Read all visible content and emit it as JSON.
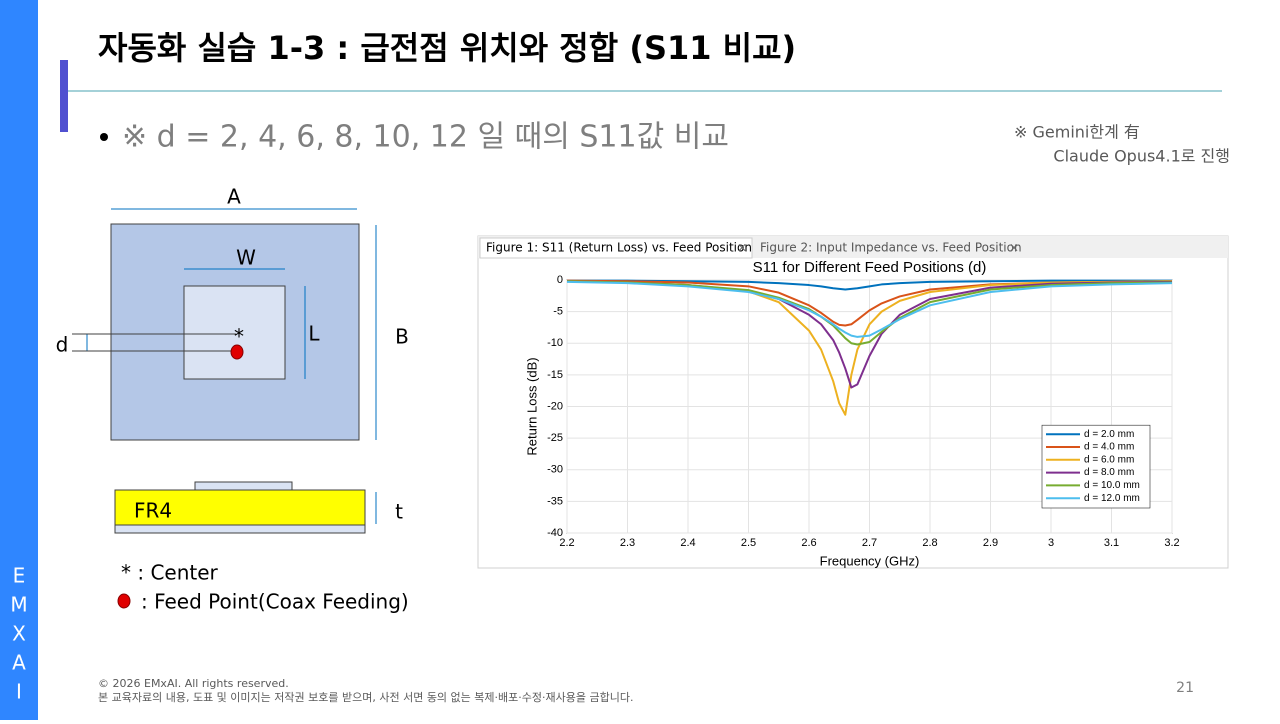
{
  "header": {
    "title": "자동화 실습 1-3 : 급전점 위치와 정합 (S11 비교)"
  },
  "bullet": "※ d = 2, 4, 6, 8, 10, 12 일 때의 S11값 비교",
  "note": [
    "※ Gemini한계 有",
    "Claude Opus4.1로 진행"
  ],
  "diagram": {
    "labels": [
      "A",
      "W",
      "L",
      "B",
      "d",
      "t",
      "FR4",
      "*"
    ],
    "legend": [
      "*  : Center",
      ": Feed Point(Coax Feeding)"
    ]
  },
  "sidebar": [
    "E",
    "M",
    "X",
    "A",
    "I"
  ],
  "footer": {
    "copyright": "© 2026 EMxAI. All rights reserved.",
    "notice": "본 교육자료의 내용, 도표 및 이미지는 저작권 보호를 받으며, 사전 서면 동의 없는 복제·배포·수정·재사용을 금합니다.",
    "page": "21"
  },
  "tabs": [
    "Figure 1: S11 (Return Loss) vs. Feed Position",
    "Figure 2: Input Impedance vs. Feed Position"
  ],
  "chart_data": {
    "type": "line",
    "title": "S11 for Different Feed Positions (d)",
    "xlabel": "Frequency (GHz)",
    "ylabel": "Return Loss (dB)",
    "x": [
      2.2,
      2.3,
      2.4,
      2.5,
      2.55,
      2.6,
      2.62,
      2.64,
      2.65,
      2.66,
      2.67,
      2.68,
      2.7,
      2.72,
      2.75,
      2.8,
      2.9,
      3.0,
      3.1,
      3.2
    ],
    "xlim": [
      2.2,
      3.2
    ],
    "xticks": [
      2.2,
      2.3,
      2.4,
      2.5,
      2.6,
      2.7,
      2.8,
      2.9,
      3,
      3.1,
      3.2
    ],
    "ylim": [
      -40,
      0
    ],
    "yticks": [
      -40,
      -35,
      -30,
      -25,
      -20,
      -15,
      -10,
      -5,
      0
    ],
    "grid": true,
    "legend": "lower right",
    "series": [
      {
        "name": "d = 2.0 mm",
        "color": "#0072bd",
        "values": [
          -0.1,
          -0.1,
          -0.2,
          -0.3,
          -0.5,
          -0.8,
          -1.0,
          -1.3,
          -1.4,
          -1.5,
          -1.4,
          -1.3,
          -1.0,
          -0.7,
          -0.5,
          -0.3,
          -0.2,
          -0.1,
          -0.1,
          -0.1
        ]
      },
      {
        "name": "d = 4.0 mm",
        "color": "#d95319",
        "values": [
          -0.1,
          -0.2,
          -0.4,
          -1.0,
          -2.0,
          -4.0,
          -5.2,
          -6.6,
          -7.1,
          -7.2,
          -7.0,
          -6.3,
          -4.8,
          -3.7,
          -2.6,
          -1.5,
          -0.7,
          -0.4,
          -0.3,
          -0.2
        ]
      },
      {
        "name": "d = 6.0 mm",
        "color": "#edb120",
        "values": [
          -0.2,
          -0.4,
          -0.8,
          -1.8,
          -3.5,
          -8,
          -11,
          -16,
          -19.5,
          -21.3,
          -15,
          -11,
          -7,
          -5,
          -3.3,
          -1.9,
          -0.8,
          -0.4,
          -0.3,
          -0.2
        ]
      },
      {
        "name": "d = 8.0 mm",
        "color": "#7e2f8e",
        "values": [
          -0.2,
          -0.4,
          -0.8,
          -1.7,
          -3.0,
          -5.5,
          -7,
          -9.5,
          -11.5,
          -14,
          -17,
          -16.5,
          -12,
          -8.5,
          -5.5,
          -3,
          -1.2,
          -0.6,
          -0.4,
          -0.3
        ]
      },
      {
        "name": "d = 10.0 mm",
        "color": "#77ac30",
        "values": [
          -0.2,
          -0.4,
          -0.8,
          -1.6,
          -2.8,
          -4.6,
          -5.8,
          -7.2,
          -8.2,
          -9.2,
          -10,
          -10.2,
          -9.8,
          -8.2,
          -6,
          -3.5,
          -1.5,
          -0.8,
          -0.5,
          -0.4
        ]
      },
      {
        "name": "d = 12.0 mm",
        "color": "#4dbeee",
        "values": [
          -0.3,
          -0.5,
          -1.0,
          -1.9,
          -3.0,
          -4.8,
          -5.8,
          -7,
          -7.7,
          -8.3,
          -8.8,
          -9,
          -8.8,
          -7.8,
          -6.2,
          -4,
          -1.9,
          -1.0,
          -0.7,
          -0.5
        ]
      }
    ]
  }
}
